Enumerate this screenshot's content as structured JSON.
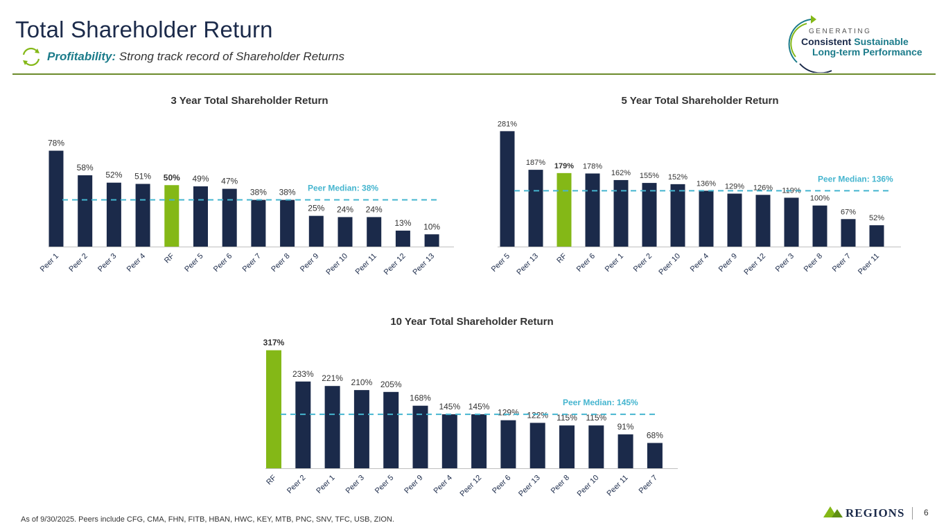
{
  "header": {
    "title": "Total Shareholder Return",
    "subtitle_lead": "Profitability:",
    "subtitle_rest": " Strong track record of Shareholder Returns",
    "badge_small": "GENERATING",
    "badge_line1_a": "Consistent",
    "badge_line1_b": " Sustainable",
    "badge_line2": "Long-term Performance"
  },
  "footer": {
    "note": "As of 9/30/2025. Peers include CFG, CMA, FHN, FITB, HBAN, HWC, KEY, MTB, PNC, SNV, TFC, USB, ZION.",
    "logo_text": "REGIONS",
    "page_number": "6"
  },
  "colors": {
    "navy": "#1b2a4a",
    "highlight": "#84b817",
    "median": "#45b5cf",
    "accent": "#1b7b8a"
  },
  "chart_data": [
    {
      "type": "bar",
      "title": "3 Year Total Shareholder Return",
      "categories": [
        "Peer 1",
        "Peer 2",
        "Peer 3",
        "Peer 4",
        "RF",
        "Peer 5",
        "Peer 6",
        "Peer 7",
        "Peer 8",
        "Peer 9",
        "Peer 10",
        "Peer 11",
        "Peer 12",
        "Peer 13"
      ],
      "values": [
        78,
        58,
        52,
        51,
        50,
        49,
        47,
        38,
        38,
        25,
        24,
        24,
        13,
        10
      ],
      "value_labels": [
        "78%",
        "58%",
        "52%",
        "51%",
        "50%",
        "49%",
        "47%",
        "38%",
        "38%",
        "25%",
        "24%",
        "24%",
        "13%",
        "10%"
      ],
      "highlight": "RF",
      "median": 38,
      "median_label": "Peer Median: 38%",
      "ylim": [
        0,
        80
      ]
    },
    {
      "type": "bar",
      "title": "5 Year Total Shareholder Return",
      "categories": [
        "Peer 5",
        "Peer 13",
        "RF",
        "Peer 6",
        "Peer 1",
        "Peer 2",
        "Peer 10",
        "Peer 4",
        "Peer 9",
        "Peer 12",
        "Peer 3",
        "Peer 8",
        "Peer 7",
        "Peer 11"
      ],
      "values": [
        281,
        187,
        179,
        178,
        162,
        155,
        152,
        136,
        129,
        126,
        119,
        100,
        67,
        52
      ],
      "value_labels": [
        "281%",
        "187%",
        "179%",
        "178%",
        "162%",
        "155%",
        "152%",
        "136%",
        "129%",
        "126%",
        "119%",
        "100%",
        "67%",
        "52%"
      ],
      "highlight": "RF",
      "median": 136,
      "median_label": "Peer Median: 136%",
      "ylim": [
        0,
        285
      ]
    },
    {
      "type": "bar",
      "title": "10 Year Total Shareholder Return",
      "categories": [
        "RF",
        "Peer 2",
        "Peer 1",
        "Peer 3",
        "Peer 5",
        "Peer 9",
        "Peer 4",
        "Peer 12",
        "Peer 6",
        "Peer 13",
        "Peer 8",
        "Peer 10",
        "Peer 11",
        "Peer 7"
      ],
      "values": [
        317,
        233,
        221,
        210,
        205,
        168,
        145,
        145,
        129,
        122,
        115,
        115,
        91,
        68
      ],
      "value_labels": [
        "317%",
        "233%",
        "221%",
        "210%",
        "205%",
        "168%",
        "145%",
        "145%",
        "129%",
        "122%",
        "115%",
        "115%",
        "91%",
        "68%"
      ],
      "highlight": "RF",
      "median": 145,
      "median_label": "Peer Median: 145%",
      "ylim": [
        0,
        320
      ]
    }
  ]
}
